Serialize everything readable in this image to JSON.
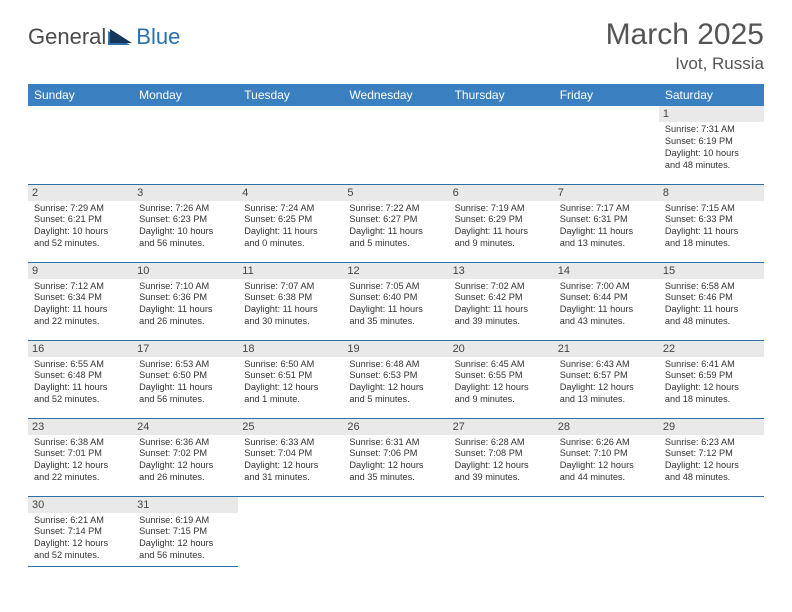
{
  "logo": {
    "part1": "General",
    "part2": "Blue"
  },
  "title": "March 2025",
  "location": "Ivot, Russia",
  "colors": {
    "header_bg": "#3a7fbf",
    "header_text": "#ffffff",
    "border": "#2b6fab",
    "daynum_bg": "#e9e9e9",
    "body_text": "#333333",
    "logo_gray": "#4a4a4a",
    "logo_blue": "#2b6fab"
  },
  "weekdays": [
    "Sunday",
    "Monday",
    "Tuesday",
    "Wednesday",
    "Thursday",
    "Friday",
    "Saturday"
  ],
  "weeks": [
    [
      null,
      null,
      null,
      null,
      null,
      null,
      {
        "n": "1",
        "sr": "Sunrise: 7:31 AM",
        "ss": "Sunset: 6:19 PM",
        "d1": "Daylight: 10 hours",
        "d2": "and 48 minutes."
      }
    ],
    [
      {
        "n": "2",
        "sr": "Sunrise: 7:29 AM",
        "ss": "Sunset: 6:21 PM",
        "d1": "Daylight: 10 hours",
        "d2": "and 52 minutes."
      },
      {
        "n": "3",
        "sr": "Sunrise: 7:26 AM",
        "ss": "Sunset: 6:23 PM",
        "d1": "Daylight: 10 hours",
        "d2": "and 56 minutes."
      },
      {
        "n": "4",
        "sr": "Sunrise: 7:24 AM",
        "ss": "Sunset: 6:25 PM",
        "d1": "Daylight: 11 hours",
        "d2": "and 0 minutes."
      },
      {
        "n": "5",
        "sr": "Sunrise: 7:22 AM",
        "ss": "Sunset: 6:27 PM",
        "d1": "Daylight: 11 hours",
        "d2": "and 5 minutes."
      },
      {
        "n": "6",
        "sr": "Sunrise: 7:19 AM",
        "ss": "Sunset: 6:29 PM",
        "d1": "Daylight: 11 hours",
        "d2": "and 9 minutes."
      },
      {
        "n": "7",
        "sr": "Sunrise: 7:17 AM",
        "ss": "Sunset: 6:31 PM",
        "d1": "Daylight: 11 hours",
        "d2": "and 13 minutes."
      },
      {
        "n": "8",
        "sr": "Sunrise: 7:15 AM",
        "ss": "Sunset: 6:33 PM",
        "d1": "Daylight: 11 hours",
        "d2": "and 18 minutes."
      }
    ],
    [
      {
        "n": "9",
        "sr": "Sunrise: 7:12 AM",
        "ss": "Sunset: 6:34 PM",
        "d1": "Daylight: 11 hours",
        "d2": "and 22 minutes."
      },
      {
        "n": "10",
        "sr": "Sunrise: 7:10 AM",
        "ss": "Sunset: 6:36 PM",
        "d1": "Daylight: 11 hours",
        "d2": "and 26 minutes."
      },
      {
        "n": "11",
        "sr": "Sunrise: 7:07 AM",
        "ss": "Sunset: 6:38 PM",
        "d1": "Daylight: 11 hours",
        "d2": "and 30 minutes."
      },
      {
        "n": "12",
        "sr": "Sunrise: 7:05 AM",
        "ss": "Sunset: 6:40 PM",
        "d1": "Daylight: 11 hours",
        "d2": "and 35 minutes."
      },
      {
        "n": "13",
        "sr": "Sunrise: 7:02 AM",
        "ss": "Sunset: 6:42 PM",
        "d1": "Daylight: 11 hours",
        "d2": "and 39 minutes."
      },
      {
        "n": "14",
        "sr": "Sunrise: 7:00 AM",
        "ss": "Sunset: 6:44 PM",
        "d1": "Daylight: 11 hours",
        "d2": "and 43 minutes."
      },
      {
        "n": "15",
        "sr": "Sunrise: 6:58 AM",
        "ss": "Sunset: 6:46 PM",
        "d1": "Daylight: 11 hours",
        "d2": "and 48 minutes."
      }
    ],
    [
      {
        "n": "16",
        "sr": "Sunrise: 6:55 AM",
        "ss": "Sunset: 6:48 PM",
        "d1": "Daylight: 11 hours",
        "d2": "and 52 minutes."
      },
      {
        "n": "17",
        "sr": "Sunrise: 6:53 AM",
        "ss": "Sunset: 6:50 PM",
        "d1": "Daylight: 11 hours",
        "d2": "and 56 minutes."
      },
      {
        "n": "18",
        "sr": "Sunrise: 6:50 AM",
        "ss": "Sunset: 6:51 PM",
        "d1": "Daylight: 12 hours",
        "d2": "and 1 minute."
      },
      {
        "n": "19",
        "sr": "Sunrise: 6:48 AM",
        "ss": "Sunset: 6:53 PM",
        "d1": "Daylight: 12 hours",
        "d2": "and 5 minutes."
      },
      {
        "n": "20",
        "sr": "Sunrise: 6:45 AM",
        "ss": "Sunset: 6:55 PM",
        "d1": "Daylight: 12 hours",
        "d2": "and 9 minutes."
      },
      {
        "n": "21",
        "sr": "Sunrise: 6:43 AM",
        "ss": "Sunset: 6:57 PM",
        "d1": "Daylight: 12 hours",
        "d2": "and 13 minutes."
      },
      {
        "n": "22",
        "sr": "Sunrise: 6:41 AM",
        "ss": "Sunset: 6:59 PM",
        "d1": "Daylight: 12 hours",
        "d2": "and 18 minutes."
      }
    ],
    [
      {
        "n": "23",
        "sr": "Sunrise: 6:38 AM",
        "ss": "Sunset: 7:01 PM",
        "d1": "Daylight: 12 hours",
        "d2": "and 22 minutes."
      },
      {
        "n": "24",
        "sr": "Sunrise: 6:36 AM",
        "ss": "Sunset: 7:02 PM",
        "d1": "Daylight: 12 hours",
        "d2": "and 26 minutes."
      },
      {
        "n": "25",
        "sr": "Sunrise: 6:33 AM",
        "ss": "Sunset: 7:04 PM",
        "d1": "Daylight: 12 hours",
        "d2": "and 31 minutes."
      },
      {
        "n": "26",
        "sr": "Sunrise: 6:31 AM",
        "ss": "Sunset: 7:06 PM",
        "d1": "Daylight: 12 hours",
        "d2": "and 35 minutes."
      },
      {
        "n": "27",
        "sr": "Sunrise: 6:28 AM",
        "ss": "Sunset: 7:08 PM",
        "d1": "Daylight: 12 hours",
        "d2": "and 39 minutes."
      },
      {
        "n": "28",
        "sr": "Sunrise: 6:26 AM",
        "ss": "Sunset: 7:10 PM",
        "d1": "Daylight: 12 hours",
        "d2": "and 44 minutes."
      },
      {
        "n": "29",
        "sr": "Sunrise: 6:23 AM",
        "ss": "Sunset: 7:12 PM",
        "d1": "Daylight: 12 hours",
        "d2": "and 48 minutes."
      }
    ],
    [
      {
        "n": "30",
        "sr": "Sunrise: 6:21 AM",
        "ss": "Sunset: 7:14 PM",
        "d1": "Daylight: 12 hours",
        "d2": "and 52 minutes."
      },
      {
        "n": "31",
        "sr": "Sunrise: 6:19 AM",
        "ss": "Sunset: 7:15 PM",
        "d1": "Daylight: 12 hours",
        "d2": "and 56 minutes."
      },
      null,
      null,
      null,
      null,
      null
    ]
  ]
}
